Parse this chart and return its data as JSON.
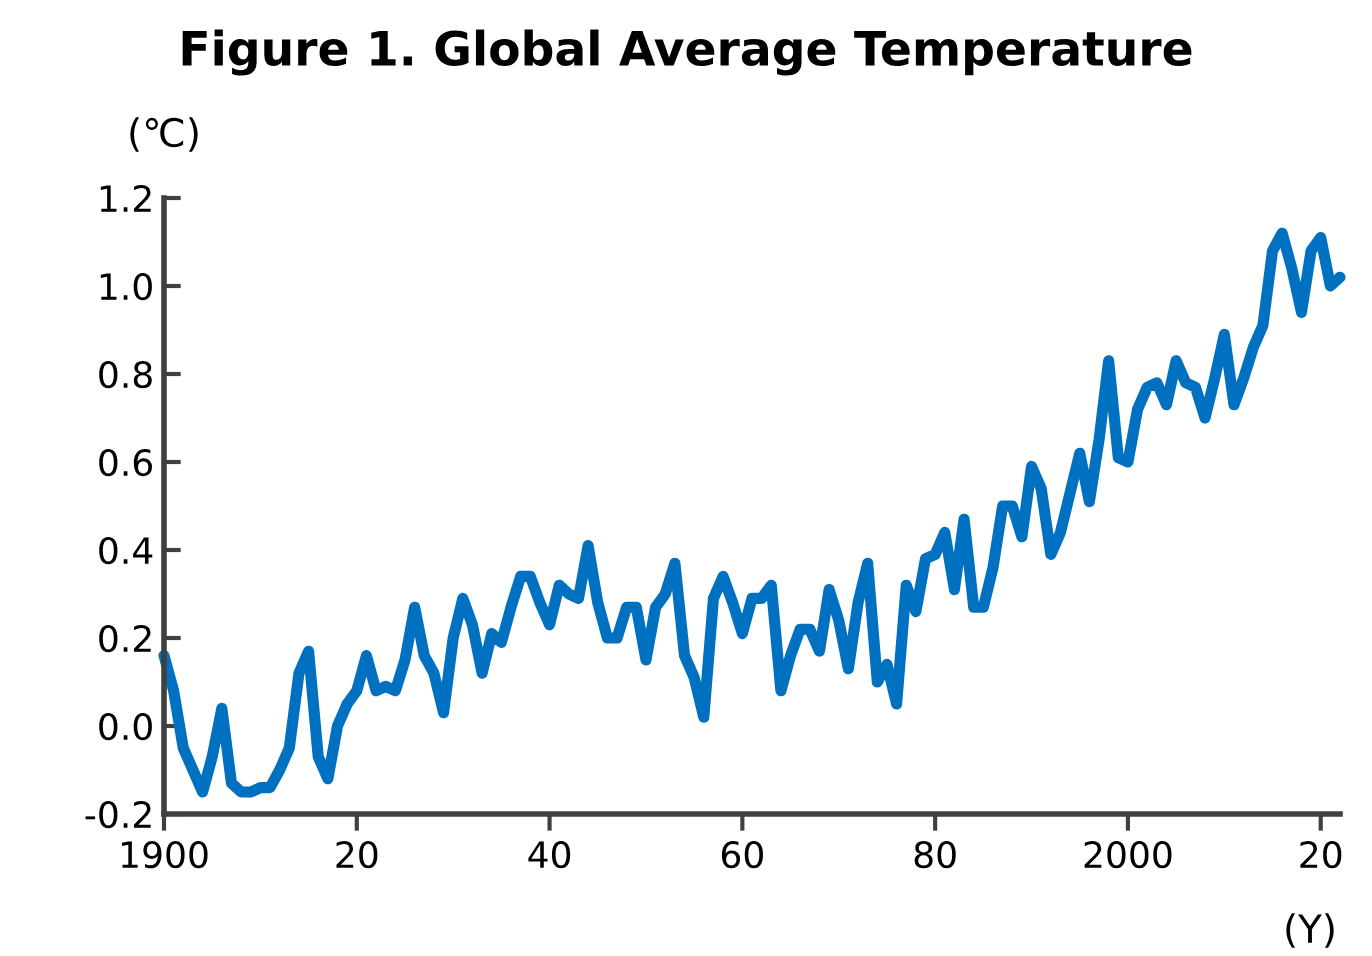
{
  "chart_data": {
    "type": "line",
    "title": "Figure 1. Global Average Temperature",
    "ylabel": "(℃)",
    "xlabel": "(Y)",
    "x": [
      1900,
      1901,
      1902,
      1903,
      1904,
      1905,
      1906,
      1907,
      1908,
      1909,
      1910,
      1911,
      1912,
      1913,
      1914,
      1915,
      1916,
      1917,
      1918,
      1919,
      1920,
      1921,
      1922,
      1923,
      1924,
      1925,
      1926,
      1927,
      1928,
      1929,
      1930,
      1931,
      1932,
      1933,
      1934,
      1935,
      1936,
      1937,
      1938,
      1939,
      1940,
      1941,
      1942,
      1943,
      1944,
      1945,
      1946,
      1947,
      1948,
      1949,
      1950,
      1951,
      1952,
      1953,
      1954,
      1955,
      1956,
      1957,
      1958,
      1959,
      1960,
      1961,
      1962,
      1963,
      1964,
      1965,
      1966,
      1967,
      1968,
      1969,
      1970,
      1971,
      1972,
      1973,
      1974,
      1975,
      1976,
      1977,
      1978,
      1979,
      1980,
      1981,
      1982,
      1983,
      1984,
      1985,
      1986,
      1987,
      1988,
      1989,
      1990,
      1991,
      1992,
      1993,
      1994,
      1995,
      1996,
      1997,
      1998,
      1999,
      2000,
      2001,
      2002,
      2003,
      2004,
      2005,
      2006,
      2007,
      2008,
      2009,
      2010,
      2011,
      2012,
      2013,
      2014,
      2015,
      2016,
      2017,
      2018,
      2019,
      2020,
      2021,
      2022
    ],
    "series": [
      {
        "color": "#0070c0",
        "values": [
          0.16,
          0.08,
          -0.05,
          -0.1,
          -0.15,
          -0.07,
          0.04,
          -0.13,
          -0.15,
          -0.15,
          -0.14,
          -0.14,
          -0.1,
          -0.05,
          0.12,
          0.17,
          -0.07,
          -0.12,
          0.0,
          0.05,
          0.08,
          0.16,
          0.08,
          0.09,
          0.08,
          0.15,
          0.27,
          0.16,
          0.12,
          0.03,
          0.2,
          0.29,
          0.23,
          0.12,
          0.21,
          0.19,
          0.27,
          0.34,
          0.34,
          0.28,
          0.23,
          0.32,
          0.3,
          0.29,
          0.41,
          0.28,
          0.2,
          0.2,
          0.27,
          0.27,
          0.15,
          0.27,
          0.3,
          0.37,
          0.16,
          0.11,
          0.02,
          0.29,
          0.34,
          0.28,
          0.21,
          0.29,
          0.29,
          0.32,
          0.08,
          0.16,
          0.22,
          0.22,
          0.17,
          0.31,
          0.24,
          0.13,
          0.28,
          0.37,
          0.1,
          0.14,
          0.05,
          0.32,
          0.26,
          0.38,
          0.39,
          0.44,
          0.31,
          0.47,
          0.27,
          0.27,
          0.36,
          0.5,
          0.5,
          0.43,
          0.59,
          0.54,
          0.39,
          0.44,
          0.53,
          0.62,
          0.51,
          0.65,
          0.83,
          0.61,
          0.6,
          0.72,
          0.77,
          0.78,
          0.73,
          0.83,
          0.78,
          0.77,
          0.7,
          0.79,
          0.89,
          0.73,
          0.79,
          0.86,
          0.91,
          1.08,
          1.12,
          1.04,
          0.94,
          1.08,
          1.11,
          1.0,
          1.02
        ]
      }
    ],
    "xlim": [
      1900,
      2022
    ],
    "xticks": [
      1900,
      {
        "value": 1920,
        "label": "20"
      },
      {
        "value": 1940,
        "label": "40"
      },
      {
        "value": 1960,
        "label": "60"
      },
      {
        "value": 1980,
        "label": "80"
      },
      2000,
      {
        "value": 2020,
        "label": "20"
      }
    ],
    "ylim": [
      -0.2,
      1.2
    ],
    "yticks": [
      {
        "value": -0.2,
        "label": "-0.2"
      },
      {
        "value": 0,
        "label": "0.0"
      },
      0.2,
      0.4,
      0.6,
      0.8,
      {
        "value": 1,
        "label": "1.0"
      },
      1.2
    ],
    "grid": false,
    "marker": "none",
    "line_style": "solid"
  }
}
